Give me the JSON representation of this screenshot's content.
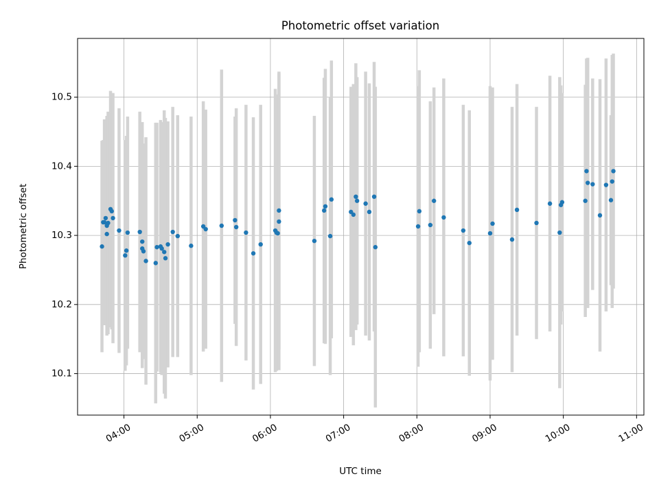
{
  "chart_data": {
    "type": "scatter",
    "title": "Photometric offset variation",
    "xlabel": "UTC time",
    "ylabel": "Photometric offset",
    "x_tick_labels": [
      "04:00",
      "05:00",
      "06:00",
      "07:00",
      "08:00",
      "09:00",
      "10:00",
      "11:00"
    ],
    "y_tick_labels": [
      "10.1",
      "10.2",
      "10.3",
      "10.4",
      "10.5"
    ],
    "y_ticks": [
      10.1,
      10.2,
      10.3,
      10.4,
      10.5
    ],
    "xlim": [
      "03:22",
      "11:06"
    ],
    "ylim": [
      10.04,
      10.585
    ],
    "grid": true,
    "error_bar_color": "#d3d3d3",
    "point_color": "#1f77b4",
    "series": [
      {
        "x": [
          "03:42",
          "03:43",
          "03:44",
          "03:45",
          "03:46",
          "03:46",
          "03:47",
          "03:49",
          "03:50",
          "03:51",
          "03:56",
          "04:01",
          "04:02",
          "04:03",
          "04:13",
          "04:15",
          "04:15",
          "04:16",
          "04:18",
          "04:26",
          "04:27",
          "04:30",
          "04:31",
          "04:33",
          "04:34",
          "04:36",
          "04:40",
          "04:44",
          "04:55",
          "05:05",
          "05:07",
          "05:20",
          "05:31",
          "05:32",
          "05:40",
          "05:46",
          "05:52",
          "06:04",
          "06:05",
          "06:06",
          "06:07",
          "06:07",
          "06:36",
          "06:44",
          "06:45",
          "06:49",
          "06:50",
          "07:06",
          "07:08",
          "07:10",
          "07:11",
          "07:18",
          "07:21",
          "07:25",
          "07:26",
          "08:01",
          "08:02",
          "08:11",
          "08:14",
          "08:22",
          "08:38",
          "08:43",
          "09:00",
          "09:02",
          "09:18",
          "09:22",
          "09:38",
          "09:49",
          "09:57",
          "09:58",
          "09:59",
          "10:18",
          "10:19",
          "10:20",
          "10:24",
          "10:30",
          "10:35",
          "10:39",
          "10:40",
          "10:41"
        ],
        "y": [
          10.284,
          10.319,
          10.319,
          10.325,
          10.302,
          10.314,
          10.318,
          10.338,
          10.335,
          10.325,
          10.307,
          10.271,
          10.278,
          10.304,
          10.305,
          10.281,
          10.291,
          10.277,
          10.263,
          10.26,
          10.283,
          10.284,
          10.281,
          10.276,
          10.267,
          10.287,
          10.305,
          10.299,
          10.285,
          10.313,
          10.309,
          10.314,
          10.322,
          10.312,
          10.304,
          10.274,
          10.287,
          10.307,
          10.304,
          10.303,
          10.336,
          10.32,
          10.292,
          10.336,
          10.342,
          10.299,
          10.352,
          10.334,
          10.33,
          10.356,
          10.35,
          10.346,
          10.334,
          10.356,
          10.283,
          10.313,
          10.335,
          10.315,
          10.35,
          10.326,
          10.307,
          10.289,
          10.303,
          10.317,
          10.294,
          10.337,
          10.318,
          10.346,
          10.304,
          10.344,
          10.348,
          10.35,
          10.393,
          10.376,
          10.374,
          10.329,
          10.373,
          10.351,
          10.378,
          10.393
        ],
        "err": [
          0.153,
          0.119,
          0.149,
          0.142,
          0.134,
          0.159,
          0.161,
          0.171,
          0.171,
          0.181,
          0.177,
          0.167,
          0.166,
          0.168,
          0.174,
          0.173,
          0.173,
          0.156,
          0.179,
          0.203,
          0.18,
          0.183,
          0.183,
          0.205,
          0.203,
          0.178,
          0.181,
          0.175,
          0.187,
          0.181,
          0.173,
          0.226,
          0.15,
          0.172,
          0.185,
          0.197,
          0.202,
          0.205,
          0.2,
          0.198,
          0.201,
          0.215,
          0.181,
          0.192,
          0.199,
          0.201,
          0.201,
          0.181,
          0.189,
          0.193,
          0.179,
          0.191,
          0.186,
          0.195,
          0.232,
          0.203,
          0.204,
          0.179,
          0.164,
          0.201,
          0.182,
          0.192,
          0.213,
          0.197,
          0.192,
          0.182,
          0.168,
          0.185,
          0.225,
          0.173,
          0.158,
          0.168,
          0.163,
          0.181,
          0.153,
          0.197,
          0.183,
          0.123,
          0.183,
          0.17
        ]
      }
    ]
  }
}
